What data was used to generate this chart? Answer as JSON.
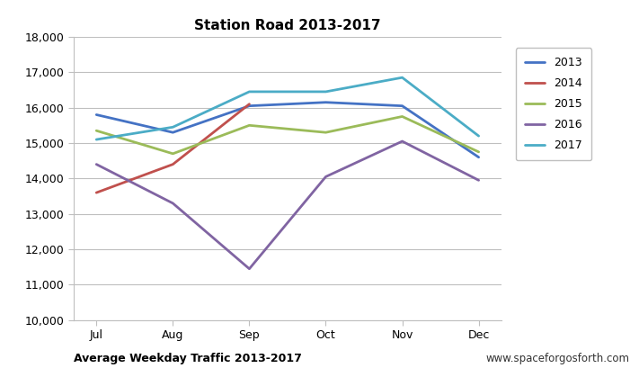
{
  "title": "Station Road 2013-2017",
  "xlabel_left": "Average Weekday Traffic 2013-2017",
  "xlabel_right": "www.spaceforgosforth.com",
  "categories": [
    "Jul",
    "Aug",
    "Sep",
    "Oct",
    "Nov",
    "Dec"
  ],
  "series": {
    "2013": [
      15800,
      15300,
      16050,
      16150,
      16050,
      14600
    ],
    "2014": [
      13600,
      14400,
      16100,
      null,
      null,
      null
    ],
    "2015": [
      15350,
      14700,
      15500,
      15300,
      15750,
      14750
    ],
    "2016": [
      14400,
      13300,
      11450,
      14050,
      15050,
      13950
    ],
    "2017": [
      15100,
      15450,
      16450,
      16450,
      16850,
      15200
    ]
  },
  "colors": {
    "2013": "#4472C4",
    "2014": "#C0504D",
    "2015": "#9BBB59",
    "2016": "#8064A2",
    "2017": "#4BACC6"
  },
  "ylim": [
    10000,
    18000
  ],
  "yticks": [
    10000,
    11000,
    12000,
    13000,
    14000,
    15000,
    16000,
    17000,
    18000
  ],
  "background_color": "#FFFFFF",
  "grid_color": "#BFBFBF",
  "line_width": 2.0
}
